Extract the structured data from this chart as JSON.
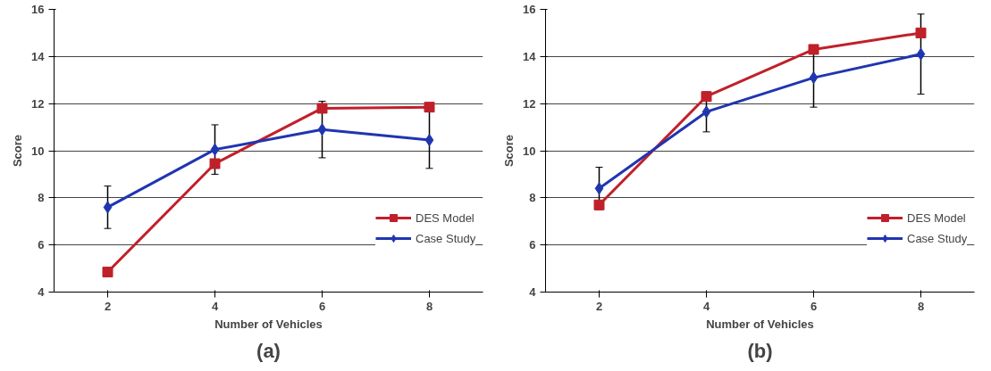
{
  "chart_data": [
    {
      "type": "line",
      "title": "(a)",
      "xlabel": "Number of Vehicles",
      "ylabel": "Score",
      "categories": [
        "2",
        "4",
        "6",
        "8"
      ],
      "ylim": [
        4,
        16
      ],
      "yticks": [
        4,
        6,
        8,
        10,
        12,
        14,
        16
      ],
      "grid": "y",
      "legend": "right",
      "series": [
        {
          "name": "DES Model",
          "color": "#c0202a",
          "marker": "square",
          "values": [
            4.85,
            9.45,
            11.8,
            11.85
          ]
        },
        {
          "name": "Case Study",
          "color": "#2035b0",
          "marker": "diamond",
          "values": [
            7.6,
            10.05,
            10.9,
            10.45
          ],
          "errors": [
            0.9,
            1.05,
            1.2,
            1.2
          ]
        }
      ]
    },
    {
      "type": "line",
      "title": "(b)",
      "xlabel": "Number of Vehicles",
      "ylabel": "Score",
      "categories": [
        "2",
        "4",
        "6",
        "8"
      ],
      "ylim": [
        4,
        16
      ],
      "yticks": [
        4,
        6,
        8,
        10,
        12,
        14,
        16
      ],
      "grid": "y",
      "legend": "right",
      "series": [
        {
          "name": "DES Model",
          "color": "#c0202a",
          "marker": "square",
          "values": [
            7.7,
            12.3,
            14.3,
            15.0
          ]
        },
        {
          "name": "Case Study",
          "color": "#2035b0",
          "marker": "diamond",
          "values": [
            8.4,
            11.65,
            13.1,
            14.1
          ],
          "errors": [
            0.9,
            0.85,
            1.25,
            1.7
          ]
        }
      ]
    }
  ]
}
